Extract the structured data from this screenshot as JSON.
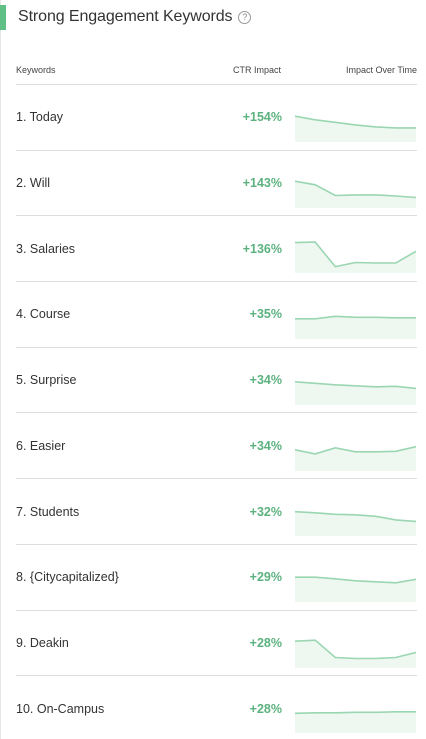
{
  "panel": {
    "title": "Strong Engagement Keywords",
    "help_icon": "question-circle-icon",
    "accent_color": "#5fbf85"
  },
  "table": {
    "columns": {
      "keywords": "Keywords",
      "ctr_impact": "CTR Impact",
      "impact_over_time": "Impact Over Time"
    },
    "rows": [
      {
        "keyword": "1. Today",
        "ctr": "+154%",
        "trend": [
          10,
          3,
          -2,
          -7,
          -11,
          -13,
          -13
        ]
      },
      {
        "keyword": "2. Will",
        "ctr": "+143%",
        "trend": [
          12,
          5,
          -16,
          -15,
          -15,
          -17,
          -20
        ]
      },
      {
        "keyword": "3. Salaries",
        "ctr": "+136%",
        "trend": [
          19,
          20,
          -28,
          -20,
          -21,
          -21,
          2
        ]
      },
      {
        "keyword": "4. Course",
        "ctr": "+35%",
        "trend": [
          -1,
          -1,
          4,
          2,
          2,
          1,
          1
        ]
      },
      {
        "keyword": "5. Surprise",
        "ctr": "+34%",
        "trend": [
          5,
          2,
          -1,
          -3,
          -5,
          -4,
          -8
        ]
      },
      {
        "keyword": "6. Easier",
        "ctr": "+34%",
        "trend": [
          1,
          -7,
          5,
          -3,
          -3,
          -2,
          7
        ]
      },
      {
        "keyword": "7. Students",
        "ctr": "+32%",
        "trend": [
          7,
          5,
          2,
          1,
          -2,
          -9,
          -12
        ]
      },
      {
        "keyword": "8. {Citycapitalized}",
        "ctr": "+29%",
        "trend": [
          8,
          8,
          5,
          1,
          -1,
          -3,
          4
        ]
      },
      {
        "keyword": "9. Deakin",
        "ctr": "+28%",
        "trend": [
          12,
          14,
          -20,
          -22,
          -22,
          -20,
          -10
        ]
      },
      {
        "keyword": "10. On-Campus",
        "ctr": "+28%",
        "trend": [
          -2,
          -1,
          -1,
          0,
          0,
          1,
          1
        ]
      }
    ]
  },
  "colors": {
    "ctr_text": "#5cb27f",
    "spark_line": "#9ad6b1",
    "spark_fill": "#eef8f1"
  }
}
